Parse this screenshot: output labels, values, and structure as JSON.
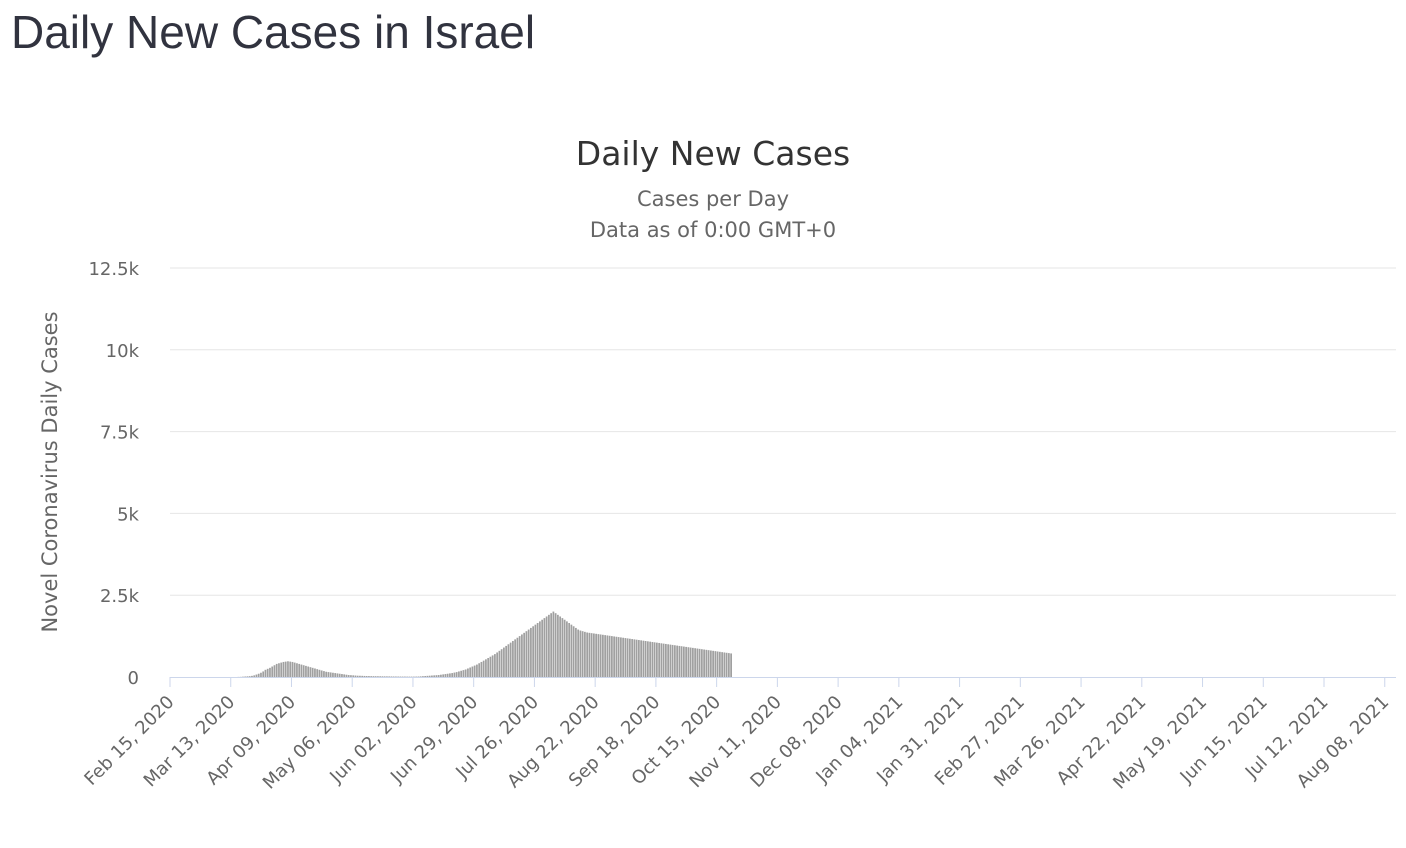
{
  "page": {
    "heading": "Daily New Cases in Israel"
  },
  "chart_data": {
    "type": "bar",
    "title": "Daily New Cases",
    "subtitle": "Cases per Day",
    "subtitle2": "Data as of 0:00 GMT+0",
    "ylabel": "Novel Coronavirus Daily Cases",
    "xlabel": "",
    "ylim": [
      0,
      12500
    ],
    "y_ticks": [
      {
        "value": 0,
        "label": "0"
      },
      {
        "value": 2500,
        "label": "2.5k"
      },
      {
        "value": 5000,
        "label": "5k"
      },
      {
        "value": 7500,
        "label": "7.5k"
      },
      {
        "value": 10000,
        "label": "10k"
      },
      {
        "value": 12500,
        "label": "12.5k"
      }
    ],
    "x_start": "2020-02-15",
    "x_end": "2021-08-13",
    "x_ticks": [
      {
        "date": "2020-02-15",
        "label": "Feb 15, 2020"
      },
      {
        "date": "2020-03-13",
        "label": "Mar 13, 2020"
      },
      {
        "date": "2020-04-09",
        "label": "Apr 09, 2020"
      },
      {
        "date": "2020-05-06",
        "label": "May 06, 2020"
      },
      {
        "date": "2020-06-02",
        "label": "Jun 02, 2020"
      },
      {
        "date": "2020-06-29",
        "label": "Jun 29, 2020"
      },
      {
        "date": "2020-07-26",
        "label": "Jul 26, 2020"
      },
      {
        "date": "2020-08-22",
        "label": "Aug 22, 2020"
      },
      {
        "date": "2020-09-18",
        "label": "Sep 18, 2020"
      },
      {
        "date": "2020-10-15",
        "label": "Oct 15, 2020"
      },
      {
        "date": "2020-11-11",
        "label": "Nov 11, 2020"
      },
      {
        "date": "2020-12-08",
        "label": "Dec 08, 2020"
      },
      {
        "date": "2021-01-04",
        "label": "Jan 04, 2021"
      },
      {
        "date": "2021-01-31",
        "label": "Jan 31, 2021"
      },
      {
        "date": "2021-02-27",
        "label": "Feb 27, 2021"
      },
      {
        "date": "2021-03-26",
        "label": "Mar 26, 2021"
      },
      {
        "date": "2021-04-22",
        "label": "Apr 22, 2021"
      },
      {
        "date": "2021-05-19",
        "label": "May 19, 2021"
      },
      {
        "date": "2021-06-15",
        "label": "Jun 15, 2021"
      },
      {
        "date": "2021-07-12",
        "label": "Jul 12, 2021"
      },
      {
        "date": "2021-08-08",
        "label": "Aug 08, 2021"
      }
    ],
    "grid": true,
    "legend": false,
    "bar_color": "#a0a0a0",
    "series": [
      {
        "start_date": "2020-02-15",
        "step_days": 1,
        "values": [
          0,
          0,
          0,
          0,
          0,
          0,
          0,
          0,
          0,
          0,
          0,
          0,
          0,
          0,
          0,
          0,
          0,
          0,
          0,
          0,
          0,
          0,
          0,
          0,
          0,
          0,
          0,
          0,
          0,
          0,
          3,
          5,
          10,
          15,
          20,
          25,
          35,
          50,
          75,
          100,
          130,
          170,
          220,
          250,
          280,
          320,
          360,
          400,
          420,
          440,
          460,
          470,
          480,
          470,
          460,
          440,
          420,
          400,
          380,
          360,
          340,
          320,
          300,
          280,
          260,
          240,
          220,
          200,
          180,
          160,
          150,
          140,
          130,
          120,
          110,
          100,
          90,
          80,
          70,
          60,
          55,
          50,
          45,
          40,
          38,
          35,
          32,
          30,
          28,
          26,
          25,
          24,
          23,
          22,
          21,
          20,
          19,
          18,
          17,
          16,
          15,
          14,
          14,
          13,
          13,
          12,
          12,
          12,
          12,
          13,
          15,
          20,
          25,
          30,
          35,
          40,
          45,
          50,
          55,
          60,
          70,
          80,
          90,
          100,
          110,
          120,
          135,
          150,
          170,
          190,
          210,
          230,
          260,
          290,
          320,
          350,
          380,
          420,
          460,
          500,
          540,
          580,
          620,
          660,
          700,
          750,
          800,
          850,
          900,
          950,
          1000,
          1050,
          1100,
          1150,
          1200,
          1250,
          1300,
          1350,
          1400,
          1450,
          1500,
          1550,
          1600,
          1650,
          1700,
          1750,
          1800,
          1850,
          1900,
          1950,
          2000,
          1950,
          1900,
          1850,
          1800,
          1750,
          1700,
          1650,
          1600,
          1550,
          1500,
          1450,
          1420,
          1400,
          1380,
          1360,
          1350,
          1340,
          1330,
          1320,
          1310,
          1300,
          1290,
          1280,
          1270,
          1260,
          1250,
          1240,
          1230,
          1220,
          1210,
          1200,
          1190,
          1180,
          1170,
          1160,
          1150,
          1140,
          1130,
          1120,
          1110,
          1100,
          1090,
          1080,
          1070,
          1060,
          1050,
          1040,
          1030,
          1020,
          1010,
          1000,
          990,
          980,
          970,
          960,
          950,
          940,
          930,
          920,
          910,
          900,
          890,
          880,
          870,
          860,
          850,
          840,
          830,
          820,
          810,
          800,
          790,
          780,
          770,
          760,
          750,
          740,
          730,
          720
        ]
      }
    ]
  }
}
